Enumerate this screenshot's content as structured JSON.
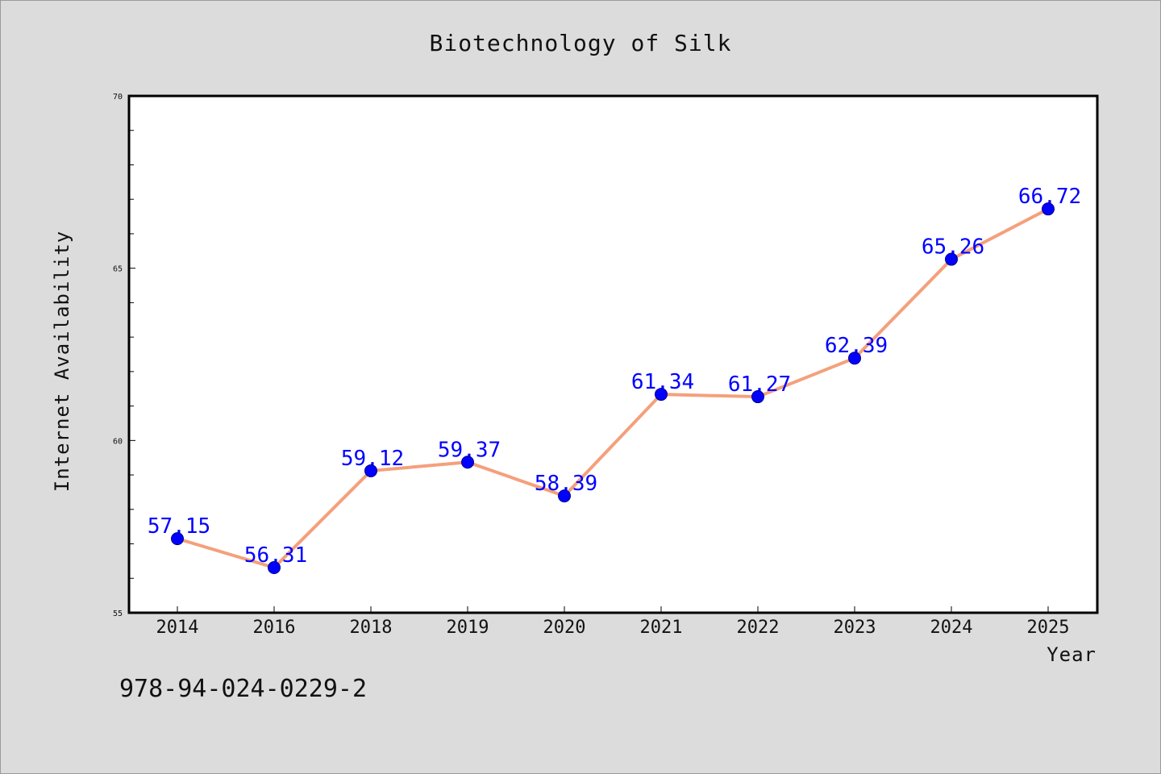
{
  "chart_data": {
    "type": "line",
    "title": "Biotechnology of Silk",
    "xlabel": "Year",
    "ylabel": "Internet Availability",
    "categories": [
      "2014",
      "2016",
      "2018",
      "2019",
      "2020",
      "2021",
      "2022",
      "2023",
      "2024",
      "2025"
    ],
    "series": [
      {
        "values": [
          57.15,
          56.31,
          59.12,
          59.37,
          58.39,
          61.34,
          61.27,
          62.39,
          65.26,
          66.72
        ],
        "labels": [
          "57.15",
          "56.31",
          "59.12",
          "59.37",
          "58.39",
          "61.34",
          "61.27",
          "62.39",
          "65.26",
          "66.72"
        ],
        "line_color": "#f4a07c",
        "marker_color": "#0000ff"
      }
    ],
    "ylim": [
      55,
      70
    ],
    "yticks": [
      "55",
      "60",
      "65",
      "70"
    ],
    "ytick_values": [
      55,
      60,
      65,
      70
    ],
    "y_minor_step": 1,
    "grid": false,
    "legend": "none"
  },
  "footer_text": "978-94-024-0229-2",
  "colors": {
    "background": "#dcdcdc",
    "plot_background": "#ffffff",
    "axis": "#000000"
  }
}
